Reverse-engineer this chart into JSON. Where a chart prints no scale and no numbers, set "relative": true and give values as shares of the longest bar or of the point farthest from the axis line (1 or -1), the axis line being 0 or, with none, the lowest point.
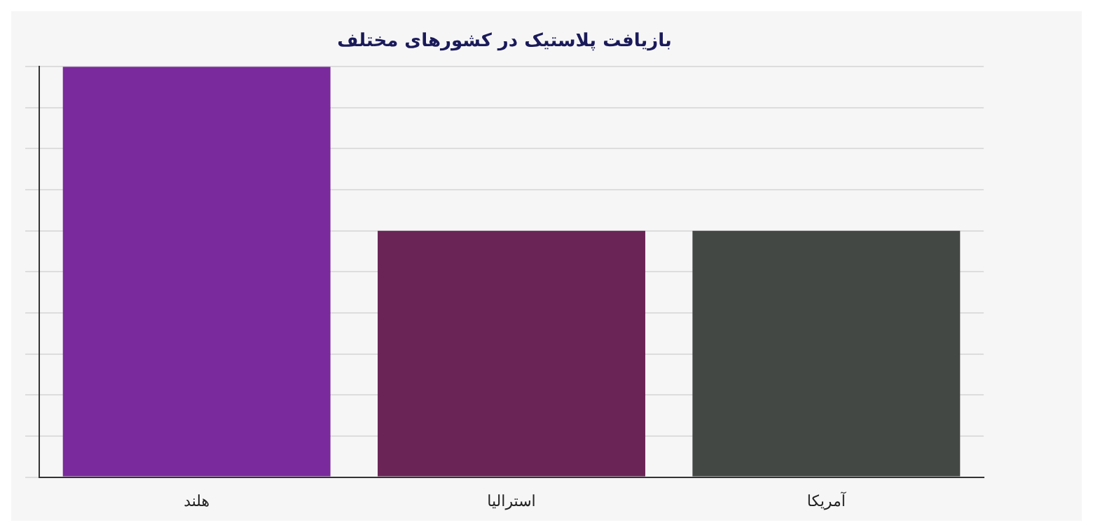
{
  "chart_data": {
    "type": "bar",
    "title": "بازیافت پلاستیک در کشورهای مختلف",
    "categories": [
      "هلند",
      "استرالیا",
      "آمریکا"
    ],
    "values": [
      1,
      0.6,
      0.6
    ],
    "colors": [
      "#7a2a9c",
      "#6a2456",
      "#434845"
    ],
    "relative": true,
    "grid": "y",
    "legend": false
  }
}
